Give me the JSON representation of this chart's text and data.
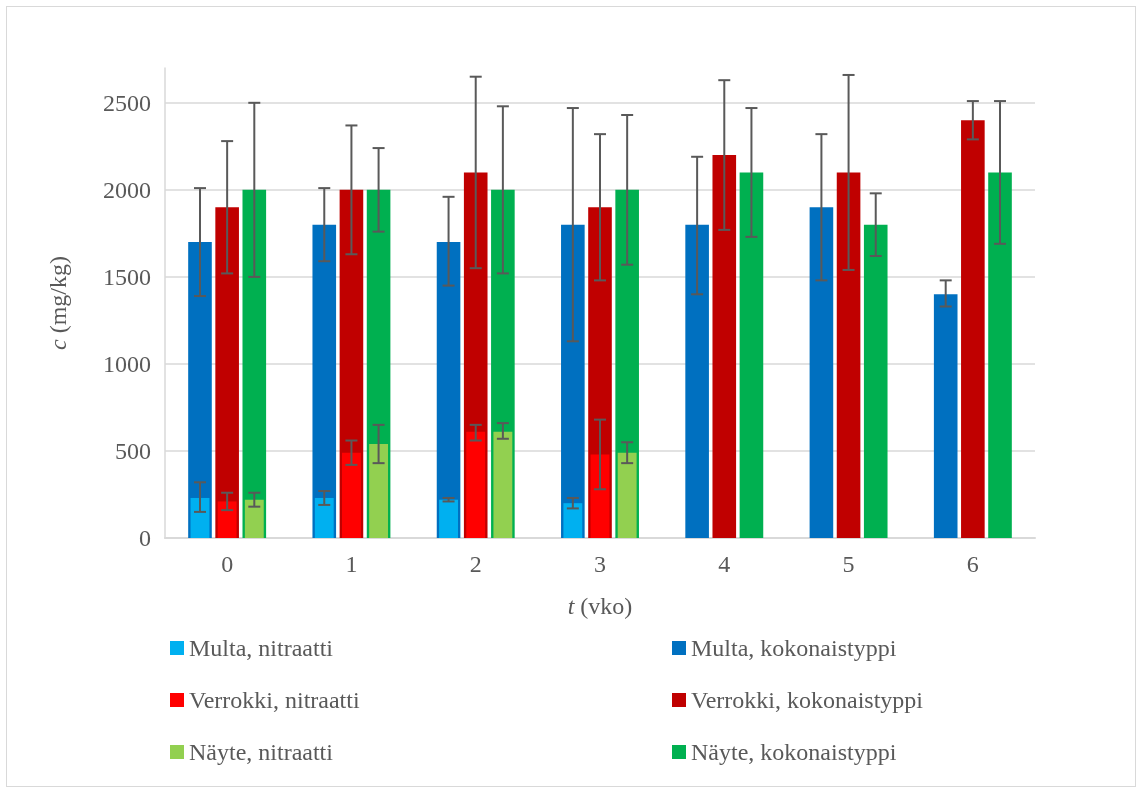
{
  "chart_data": {
    "type": "bar",
    "xlabel": "t (vko)",
    "ylabel": "c (mg/kg)",
    "categories": [
      "0",
      "1",
      "2",
      "3",
      "4",
      "5",
      "6"
    ],
    "ylim": [
      0,
      2700
    ],
    "yticks": [
      0,
      500,
      1000,
      1500,
      2000,
      2500
    ],
    "grid": "y",
    "legend": "bottom",
    "series": [
      {
        "name": "Multa, nitraatti",
        "color": "#00b0f0",
        "values": [
          230,
          230,
          220,
          200,
          null,
          null,
          null
        ],
        "errors": [
          [
            150,
            320
          ],
          [
            190,
            270
          ],
          [
            210,
            230
          ],
          [
            170,
            230
          ],
          null,
          null,
          null
        ]
      },
      {
        "name": "Multa, kokonaistyppi",
        "color": "#0070c0",
        "values": [
          1700,
          1800,
          1700,
          1800,
          1800,
          1900,
          1400
        ],
        "errors": [
          [
            1390,
            2010
          ],
          [
            1590,
            2010
          ],
          [
            1450,
            1960
          ],
          [
            1130,
            2470
          ],
          [
            1400,
            2190
          ],
          [
            1480,
            2320
          ],
          [
            1330,
            1480
          ]
        ]
      },
      {
        "name": "Verrokki, nitraatti",
        "color": "#ff0000",
        "values": [
          210,
          490,
          610,
          480,
          null,
          null,
          null
        ],
        "errors": [
          [
            160,
            260
          ],
          [
            420,
            560
          ],
          [
            560,
            650
          ],
          [
            280,
            680
          ],
          null,
          null,
          null
        ]
      },
      {
        "name": "Verrokki, kokonaistyppi",
        "color": "#c00000",
        "values": [
          1900,
          2000,
          2100,
          1900,
          2200,
          2100,
          2400
        ],
        "errors": [
          [
            1520,
            2280
          ],
          [
            1630,
            2370
          ],
          [
            1550,
            2650
          ],
          [
            1480,
            2320
          ],
          [
            1770,
            2630
          ],
          [
            1540,
            2660
          ],
          [
            2290,
            2510
          ]
        ]
      },
      {
        "name": "Näyte, nitraatti",
        "color": "#92d050",
        "values": [
          220,
          540,
          610,
          490,
          null,
          null,
          null
        ],
        "errors": [
          [
            180,
            260
          ],
          [
            430,
            650
          ],
          [
            570,
            660
          ],
          [
            430,
            550
          ],
          null,
          null,
          null
        ]
      },
      {
        "name": "Näyte, kokonaistyppi",
        "color": "#00b050",
        "values": [
          2000,
          2000,
          2000,
          2000,
          2100,
          1800,
          2100
        ],
        "errors": [
          [
            1500,
            2500
          ],
          [
            1760,
            2240
          ],
          [
            1520,
            2480
          ],
          [
            1570,
            2430
          ],
          [
            1730,
            2470
          ],
          [
            1620,
            1980
          ],
          [
            1690,
            2510
          ]
        ]
      }
    ]
  }
}
